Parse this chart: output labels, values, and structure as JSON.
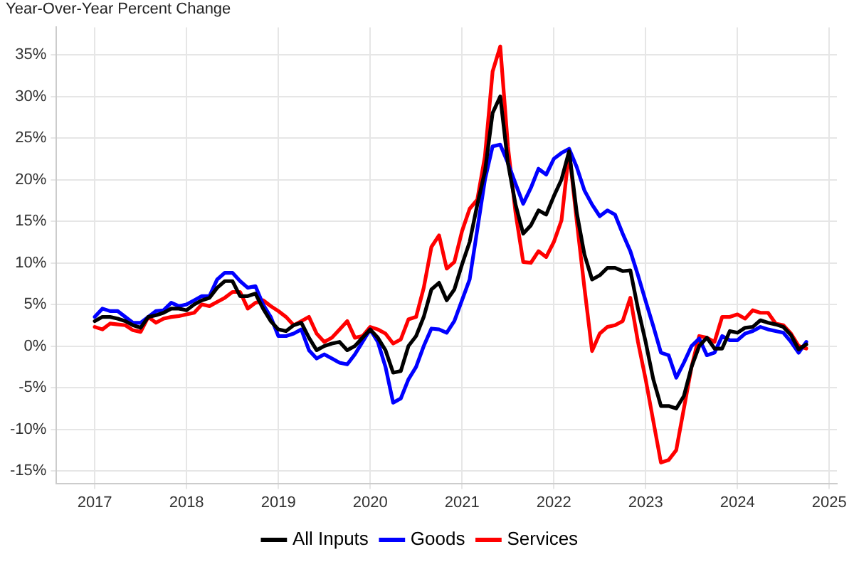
{
  "chart_data": {
    "type": "line",
    "title": "Year-Over-Year Percent Change",
    "x": [
      "2017-01",
      "2017-02",
      "2017-03",
      "2017-04",
      "2017-05",
      "2017-06",
      "2017-07",
      "2017-08",
      "2017-09",
      "2017-10",
      "2017-11",
      "2017-12",
      "2018-01",
      "2018-02",
      "2018-03",
      "2018-04",
      "2018-05",
      "2018-06",
      "2018-07",
      "2018-08",
      "2018-09",
      "2018-10",
      "2018-11",
      "2018-12",
      "2019-01",
      "2019-02",
      "2019-03",
      "2019-04",
      "2019-05",
      "2019-06",
      "2019-07",
      "2019-08",
      "2019-09",
      "2019-10",
      "2019-11",
      "2019-12",
      "2020-01",
      "2020-02",
      "2020-03",
      "2020-04",
      "2020-05",
      "2020-06",
      "2020-07",
      "2020-08",
      "2020-09",
      "2020-10",
      "2020-11",
      "2020-12",
      "2021-01",
      "2021-02",
      "2021-03",
      "2021-04",
      "2021-05",
      "2021-06",
      "2021-07",
      "2021-08",
      "2021-09",
      "2021-10",
      "2021-11",
      "2021-12",
      "2022-01",
      "2022-02",
      "2022-03",
      "2022-04",
      "2022-05",
      "2022-06",
      "2022-07",
      "2022-08",
      "2022-09",
      "2022-10",
      "2022-11",
      "2022-12",
      "2023-01",
      "2023-02",
      "2023-03",
      "2023-04",
      "2023-05",
      "2023-06",
      "2023-07",
      "2023-08",
      "2023-09",
      "2023-10",
      "2023-11",
      "2023-12",
      "2024-01",
      "2024-02",
      "2024-03",
      "2024-04",
      "2024-05",
      "2024-06",
      "2024-07",
      "2024-08",
      "2024-09",
      "2024-10"
    ],
    "series": [
      {
        "name": "All Inputs",
        "color": "#000000",
        "values": [
          3.0,
          3.5,
          3.5,
          3.3,
          3.0,
          2.5,
          2.2,
          3.5,
          3.7,
          4.0,
          4.5,
          4.5,
          4.3,
          5.0,
          5.5,
          5.8,
          7.0,
          7.8,
          7.8,
          6.0,
          6.0,
          6.3,
          4.5,
          3.0,
          2.0,
          1.8,
          2.5,
          2.8,
          1.0,
          -0.5,
          0,
          0.3,
          0.5,
          -0.5,
          0,
          1.0,
          2.0,
          1.0,
          -0.5,
          -3.2,
          -3.0,
          0,
          1.2,
          3.5,
          6.8,
          7.6,
          5.5,
          6.8,
          9.8,
          12.5,
          17,
          21,
          28,
          30,
          22,
          17,
          13.5,
          14.5,
          16.3,
          15.8,
          18,
          20,
          23.4,
          16,
          11,
          8.0,
          8.5,
          9.4,
          9.4,
          9.0,
          9.1,
          4.5,
          0.5,
          -4,
          -7.2,
          -7.2,
          -7.5,
          -6,
          -2.5,
          0,
          1.0,
          -0.3,
          -0.3,
          1.8,
          1.6,
          2.2,
          2.3,
          3.1,
          2.8,
          2.6,
          2.3,
          1.3,
          -0.4,
          0.2
        ]
      },
      {
        "name": "Goods",
        "color": "#0000ff",
        "values": [
          3.5,
          4.5,
          4.2,
          4.2,
          3.5,
          2.8,
          2.8,
          3.5,
          4.2,
          4.3,
          5.2,
          4.8,
          5.0,
          5.5,
          6.0,
          6.0,
          8.0,
          8.8,
          8.8,
          7.8,
          7.0,
          7.2,
          5.0,
          3.5,
          1.2,
          1.2,
          1.5,
          2.0,
          -0.5,
          -1.5,
          -1.0,
          -1.5,
          -2.0,
          -2.2,
          -1.0,
          0.5,
          2.0,
          0.5,
          -2.5,
          -6.8,
          -6.3,
          -4,
          -2.5,
          0,
          2.1,
          2.0,
          1.6,
          3.0,
          5.5,
          8.0,
          14,
          20,
          24,
          24.2,
          22,
          19.5,
          17.1,
          19,
          21.3,
          20.6,
          22.5,
          23.2,
          23.7,
          21.5,
          18.7,
          17,
          15.6,
          16.3,
          15.8,
          13.5,
          11.4,
          8.5,
          5.4,
          2.4,
          -0.8,
          -1.1,
          -3.8,
          -2,
          0,
          0.9,
          -1.1,
          -0.8,
          1.2,
          0.7,
          0.7,
          1.5,
          1.8,
          2.3,
          2.0,
          1.8,
          1.6,
          0.5,
          -0.8,
          0.5
        ]
      },
      {
        "name": "Services",
        "color": "#ff0000",
        "values": [
          2.3,
          2.0,
          2.7,
          2.6,
          2.5,
          1.9,
          1.7,
          3.5,
          2.8,
          3.3,
          3.5,
          3.6,
          3.8,
          4.0,
          5.0,
          4.8,
          5.3,
          5.8,
          6.5,
          6.5,
          4.5,
          5.2,
          5.5,
          4.8,
          4.2,
          3.5,
          2.5,
          3.0,
          3.5,
          1.5,
          0.5,
          1.0,
          2.0,
          3.0,
          1.0,
          1.2,
          2.3,
          2.0,
          1.5,
          0.3,
          0.8,
          3.2,
          3.5,
          7.0,
          11.9,
          13.3,
          9.3,
          10.1,
          13.8,
          16.5,
          17.6,
          22.8,
          33,
          36,
          24,
          16,
          10.1,
          10.0,
          11.4,
          10.7,
          12.5,
          15.1,
          23.4,
          15,
          7,
          -0.6,
          1.5,
          2.3,
          2.5,
          3.0,
          5.8,
          0.5,
          -4,
          -9,
          -14,
          -13.7,
          -12.5,
          -7.5,
          -2.5,
          1.2,
          1.0,
          0.5,
          3.5,
          3.5,
          3.8,
          3.3,
          4.3,
          4.0,
          4.0,
          2.7,
          2.5,
          1.5,
          0.0,
          -0.3
        ]
      }
    ],
    "xlim": [
      "2016-08",
      "2025-02"
    ],
    "xticks": [
      "2017",
      "2018",
      "2019",
      "2020",
      "2021",
      "2022",
      "2023",
      "2024",
      "2025"
    ],
    "ylim": [
      -16.5,
      38.3
    ],
    "yticks": [
      {
        "value": -15,
        "label": "-15%"
      },
      {
        "value": -10,
        "label": "-10%"
      },
      {
        "value": -5,
        "label": "-5%"
      },
      {
        "value": 0,
        "label": "0%"
      },
      {
        "value": 5,
        "label": "5%"
      },
      {
        "value": 10,
        "label": "10%"
      },
      {
        "value": 15,
        "label": "15%"
      },
      {
        "value": 20,
        "label": "20%"
      },
      {
        "value": 25,
        "label": "25%"
      },
      {
        "value": 30,
        "label": "30%"
      },
      {
        "value": 35,
        "label": "35%"
      }
    ],
    "grid": true,
    "legend": "bottom",
    "marker": "none",
    "line_style": "solid"
  }
}
